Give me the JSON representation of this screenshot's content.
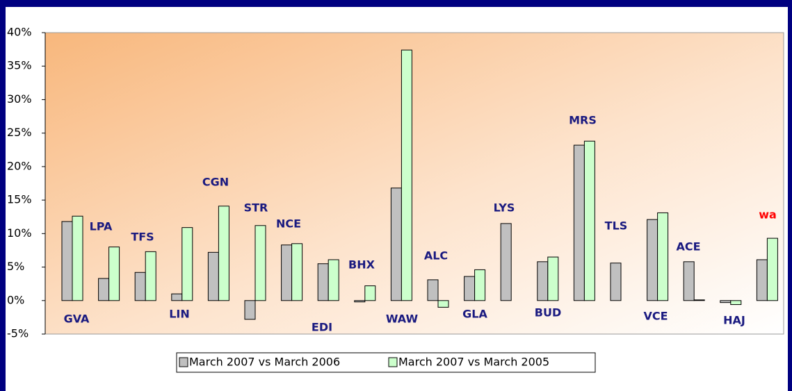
{
  "chart_data": {
    "type": "bar",
    "categories": [
      "GVA",
      "LPA",
      "TFS",
      "LIN",
      "CGN",
      "STR",
      "NCE",
      "EDI",
      "BHX",
      "WAW",
      "ALC",
      "GLA",
      "LYS",
      "BUD",
      "MRS",
      "TLS",
      "VCE",
      "ACE",
      "HAJ",
      "wa"
    ],
    "category_colors": [
      "#1a1a80",
      "#1a1a80",
      "#1a1a80",
      "#1a1a80",
      "#1a1a80",
      "#1a1a80",
      "#1a1a80",
      "#1a1a80",
      "#1a1a80",
      "#1a1a80",
      "#1a1a80",
      "#1a1a80",
      "#1a1a80",
      "#1a1a80",
      "#1a1a80",
      "#1a1a80",
      "#1a1a80",
      "#1a1a80",
      "#1a1a80",
      "#ff0000"
    ],
    "series": [
      {
        "name": "March 2007 vs March 2006",
        "color": "#c0c0c0",
        "values": [
          11.8,
          3.3,
          4.2,
          1.0,
          7.2,
          -2.8,
          8.3,
          5.5,
          -0.2,
          16.8,
          3.1,
          3.6,
          11.5,
          5.8,
          23.2,
          5.6,
          12.1,
          5.8,
          -0.3,
          6.1
        ]
      },
      {
        "name": "March 2007 vs March 2005",
        "color": "#ccffcc",
        "values": [
          12.6,
          8.0,
          7.3,
          10.9,
          14.1,
          11.2,
          8.5,
          6.1,
          2.2,
          37.4,
          -1.0,
          4.6,
          null,
          6.5,
          23.8,
          null,
          13.1,
          0.1,
          -0.6,
          9.3
        ]
      }
    ],
    "ylim": [
      -5,
      40
    ],
    "yticks": [
      {
        "value": -5,
        "label": "-5%"
      },
      {
        "value": 0,
        "label": "0%"
      },
      {
        "value": 5,
        "label": "5%"
      },
      {
        "value": 10,
        "label": "10%"
      },
      {
        "value": 15,
        "label": "15%"
      },
      {
        "value": 20,
        "label": "20%"
      },
      {
        "value": 25,
        "label": "25%"
      },
      {
        "value": 30,
        "label": "30%"
      },
      {
        "value": 35,
        "label": "35%"
      },
      {
        "value": 40,
        "label": "40%"
      }
    ],
    "grid": false,
    "legend": "bottom"
  }
}
